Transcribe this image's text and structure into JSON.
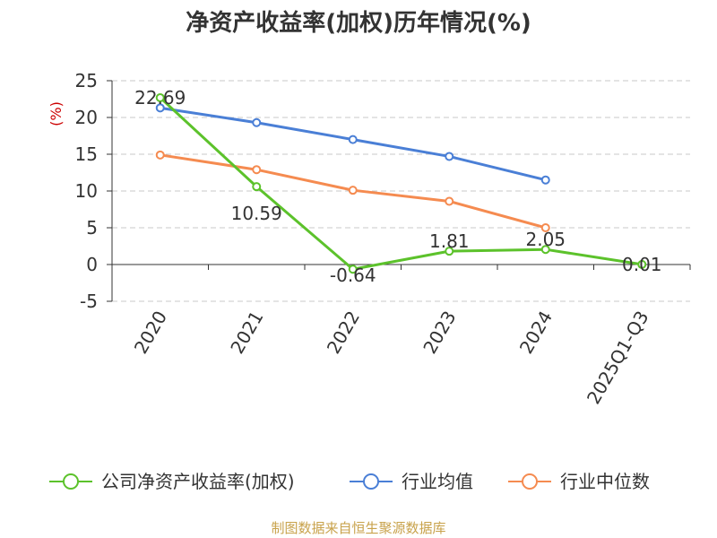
{
  "chart_data": {
    "type": "line",
    "title": "净资产收益率(加权)历年情况(%)",
    "ylabel": "(%)",
    "xlabel": "",
    "ylim": [
      -5,
      25
    ],
    "yticks": [
      25,
      20,
      15,
      10,
      5,
      0,
      -5
    ],
    "ytick_labels": [
      "25",
      "20",
      "15",
      "10",
      "5",
      "0",
      "-5"
    ],
    "categories": [
      "2020",
      "2021",
      "2022",
      "2023",
      "2024",
      "2025Q1-Q3"
    ],
    "grid": true,
    "legend_position": "bottom",
    "series": [
      {
        "name": "公司净资产收益率(加权)",
        "color": "#5cc22b",
        "values": [
          22.69,
          10.59,
          -0.64,
          1.81,
          2.05,
          0.01
        ],
        "labels": [
          "22.69",
          "10.59",
          "-0.64",
          "1.81",
          "2.05",
          "0.01"
        ]
      },
      {
        "name": "行业均值",
        "color": "#4a7fd6",
        "values": [
          21.3,
          19.3,
          17.0,
          14.7,
          11.5,
          null
        ]
      },
      {
        "name": "行业中位数",
        "color": "#f58b50",
        "values": [
          14.9,
          12.9,
          10.1,
          8.6,
          5.0,
          null
        ]
      }
    ]
  },
  "footer": {
    "source": "制图数据来自恒生聚源数据库",
    "color": "#c8a24b"
  },
  "colors": {
    "unit": "#cc0000",
    "grid": "#c8c8c8",
    "axis": "#333333"
  }
}
